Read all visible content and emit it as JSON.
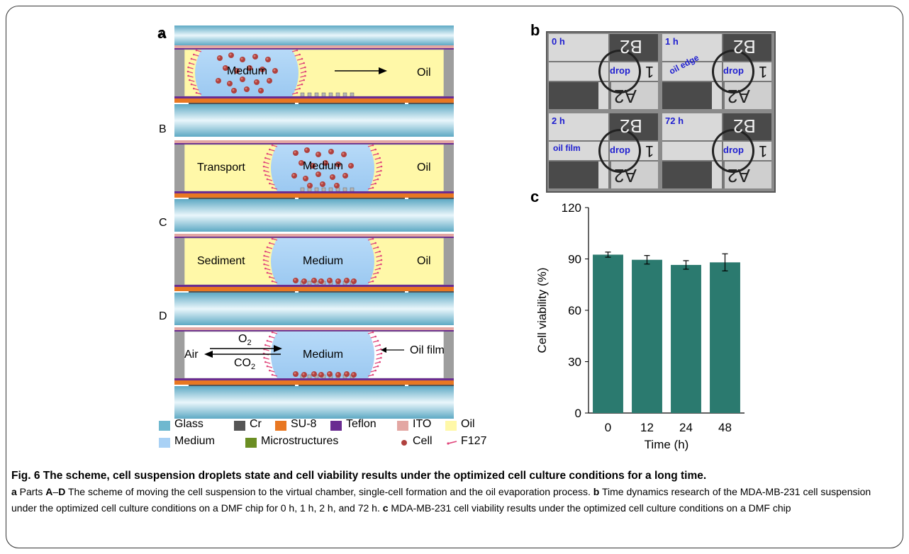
{
  "panel_a": {
    "label": "a",
    "stages": [
      {
        "letter": "A",
        "left_text": "",
        "center_text": "Medium",
        "right_text": "Oil"
      },
      {
        "letter": "B",
        "left_text": "Transport",
        "center_text": "Medium",
        "right_text": "Oil"
      },
      {
        "letter": "C",
        "left_text": "Sediment",
        "center_text": "Medium",
        "right_text": "Oil"
      },
      {
        "letter": "D",
        "left_text": "Air",
        "center_text": "Medium",
        "right_text": "Oil film",
        "o2": "O",
        "o2_sub": "2",
        "co2": "CO",
        "co2_sub": "2"
      }
    ],
    "legend": [
      {
        "label": "Glass",
        "color": "#6fb8cf",
        "kind": "swatch"
      },
      {
        "label": "Cr",
        "color": "#555555",
        "kind": "swatch"
      },
      {
        "label": "SU-8",
        "color": "#e87722",
        "kind": "swatch"
      },
      {
        "label": "Teflon",
        "color": "#6a2c91",
        "kind": "swatch"
      },
      {
        "label": "ITO",
        "color": "#e3a7a3",
        "kind": "swatch"
      },
      {
        "label": "Oil",
        "color": "#fff8a8",
        "kind": "swatch"
      },
      {
        "label": "Medium",
        "color": "#a9d1f5",
        "kind": "swatch"
      },
      {
        "label": "Microstructures",
        "color": "#6b8e23",
        "kind": "swatch"
      },
      {
        "label": "Cell",
        "color": "#b0413e",
        "kind": "cell"
      },
      {
        "label": "F127",
        "color": "#e0457b",
        "kind": "f127"
      }
    ]
  },
  "panel_b": {
    "label": "b",
    "tiles": [
      {
        "time": "0 h",
        "note": "",
        "drop": "drop"
      },
      {
        "time": "1 h",
        "note": "oil edge",
        "drop": "drop"
      },
      {
        "time": "2 h",
        "note": "oil film",
        "drop": "drop"
      },
      {
        "time": "72 h",
        "note": "",
        "drop": "drop"
      }
    ],
    "marks": {
      "top": "B2",
      "bottom": "A2",
      "side": "1"
    }
  },
  "panel_c": {
    "label": "c"
  },
  "chart_data": {
    "type": "bar",
    "categories": [
      "0",
      "12",
      "24",
      "48"
    ],
    "values": [
      92.5,
      89.5,
      86.5,
      88.0
    ],
    "errors": [
      1.5,
      2.5,
      2.5,
      5.0
    ],
    "xlabel": "Time (h)",
    "ylabel": "Cell viability (%)",
    "ylim": [
      0,
      120
    ],
    "yticks": [
      "0",
      "30",
      "60",
      "90",
      "120"
    ],
    "bar_color": "#2b7a6f"
  },
  "caption": {
    "title": "Fig. 6 The scheme, cell suspension droplets state and cell viability results under the optimized cell culture conditions for a long time.",
    "a_label": "a",
    "a_text_1": " Parts ",
    "a_A": "A",
    "a_dash": "–",
    "a_D": "D",
    "a_text_2": " The scheme of moving the cell suspension to the virtual chamber, single-cell formation and the oil evaporation process. ",
    "b_label": "b",
    "b_text": " Time dynamics research of the MDA-MB-231 cell suspension under the optimized cell culture conditions on a DMF chip for 0 h, 1 h, 2 h, and 72 h. ",
    "c_label": "c",
    "c_text": " MDA-MB-231 cell viability results under the optimized cell culture conditions on a DMF chip"
  }
}
